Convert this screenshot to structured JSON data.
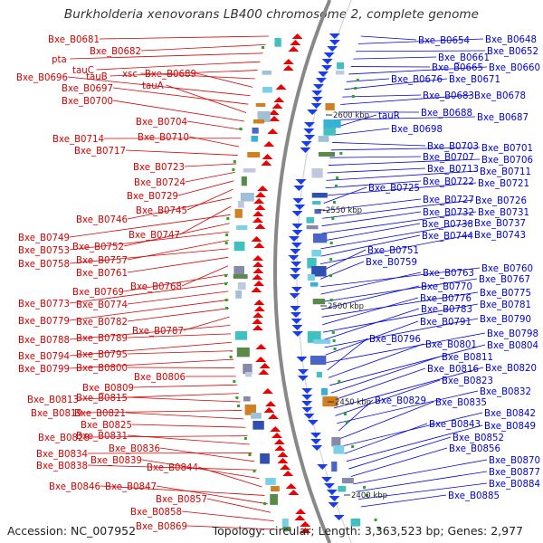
{
  "title": "Burkholderia xenovorans LB400 chromosome 2, complete genome",
  "accession": "Accession: NC_007952",
  "topology": "Topology: circular; Length: 3,363,523 bp; Genes: 2,977",
  "colors": {
    "left_genes": "#d80000",
    "right_genes": "#0000d8",
    "backbone": "#888888",
    "kbp_label": "#222222"
  },
  "kbp_labels": [
    "2600 kbp",
    "2550 kbp",
    "2500 kbp",
    "2450 kbp",
    "2400 kbp"
  ],
  "left_labels": [
    "Bxe_B0681",
    "Bxe_B0682",
    "pta",
    "tauC",
    "tauB",
    "xsc",
    "Bxe_B0689",
    "Bxe_B0696",
    "Bxe_B0697",
    "tauA",
    "Bxe_B0700",
    "Bxe_B0704",
    "Bxe_B0714",
    "Bxe_B0710",
    "Bxe_B0717",
    "Bxe_B0723",
    "Bxe_B0724",
    "Bxe_B0729",
    "Bxe_B0745",
    "Bxe_B0746",
    "Bxe_B0747",
    "Bxe_B0749",
    "Bxe_B0752",
    "Bxe_B0753",
    "Bxe_B0757",
    "Bxe_B0758",
    "Bxe_B0761",
    "Bxe_B0768",
    "Bxe_B0769",
    "Bxe_B0773",
    "Bxe_B0774",
    "Bxe_B0779",
    "Bxe_B0782",
    "Bxe_B0787",
    "Bxe_B0788",
    "Bxe_B0789",
    "Bxe_B0794",
    "Bxe_B0795",
    "Bxe_B0799",
    "Bxe_B0800",
    "Bxe_B0806",
    "Bxe_B0809",
    "Bxe_B0813",
    "Bxe_B0815",
    "Bxe_B0819",
    "Bxe_B0821",
    "Bxe_B0825",
    "Bxe_B0828",
    "Bxe_B0831",
    "Bxe_B0834",
    "Bxe_B0836",
    "Bxe_B0838",
    "Bxe_B0839",
    "Bxe_B0844",
    "Bxe_B0846",
    "Bxe_B0847",
    "Bxe_B0857",
    "Bxe_B0858",
    "Bxe_B0869"
  ],
  "right_labels": [
    "Bxe_B0654",
    "Bxe_B0648",
    "Bxe_B0652",
    "Bxe_B0661",
    "Bxe_B0665",
    "Bxe_B0660",
    "Bxe_B0676",
    "Bxe_B0671",
    "Bxe_B0683",
    "Bxe_B0678",
    "Bxe_B0688",
    "Bxe_B0687",
    "tauR",
    "Bxe_B0698",
    "Bxe_B0703",
    "Bxe_B0701",
    "Bxe_B0707",
    "Bxe_B0706",
    "Bxe_B0713",
    "Bxe_B0711",
    "Bxe_B0722",
    "Bxe_B0721",
    "Bxe_B0725",
    "Bxe_B0727",
    "Bxe_B0726",
    "Bxe_B0732",
    "Bxe_B0731",
    "Bxe_B0738",
    "Bxe_B0737",
    "Bxe_B0744",
    "Bxe_B0743",
    "Bxe_B0751",
    "Bxe_B0759",
    "Bxe_B0760",
    "Bxe_B0763",
    "Bxe_B0767",
    "Bxe_B0770",
    "Bxe_B0775",
    "Bxe_B0776",
    "Bxe_B0781",
    "Bxe_B0783",
    "Bxe_B0790",
    "Bxe_B0791",
    "Bxe_B0798",
    "Bxe_B0796",
    "Bxe_B0801",
    "Bxe_B0804",
    "Bxe_B0811",
    "Bxe_B0816",
    "Bxe_B0820",
    "Bxe_B0823",
    "Bxe_B0832",
    "Bxe_B0829",
    "Bxe_B0835",
    "Bxe_B0842",
    "Bxe_B0843",
    "Bxe_B0849",
    "Bxe_B0852",
    "Bxe_B0856",
    "Bxe_B0870",
    "Bxe_B0877",
    "Bxe_B0884",
    "Bxe_B0885"
  ]
}
